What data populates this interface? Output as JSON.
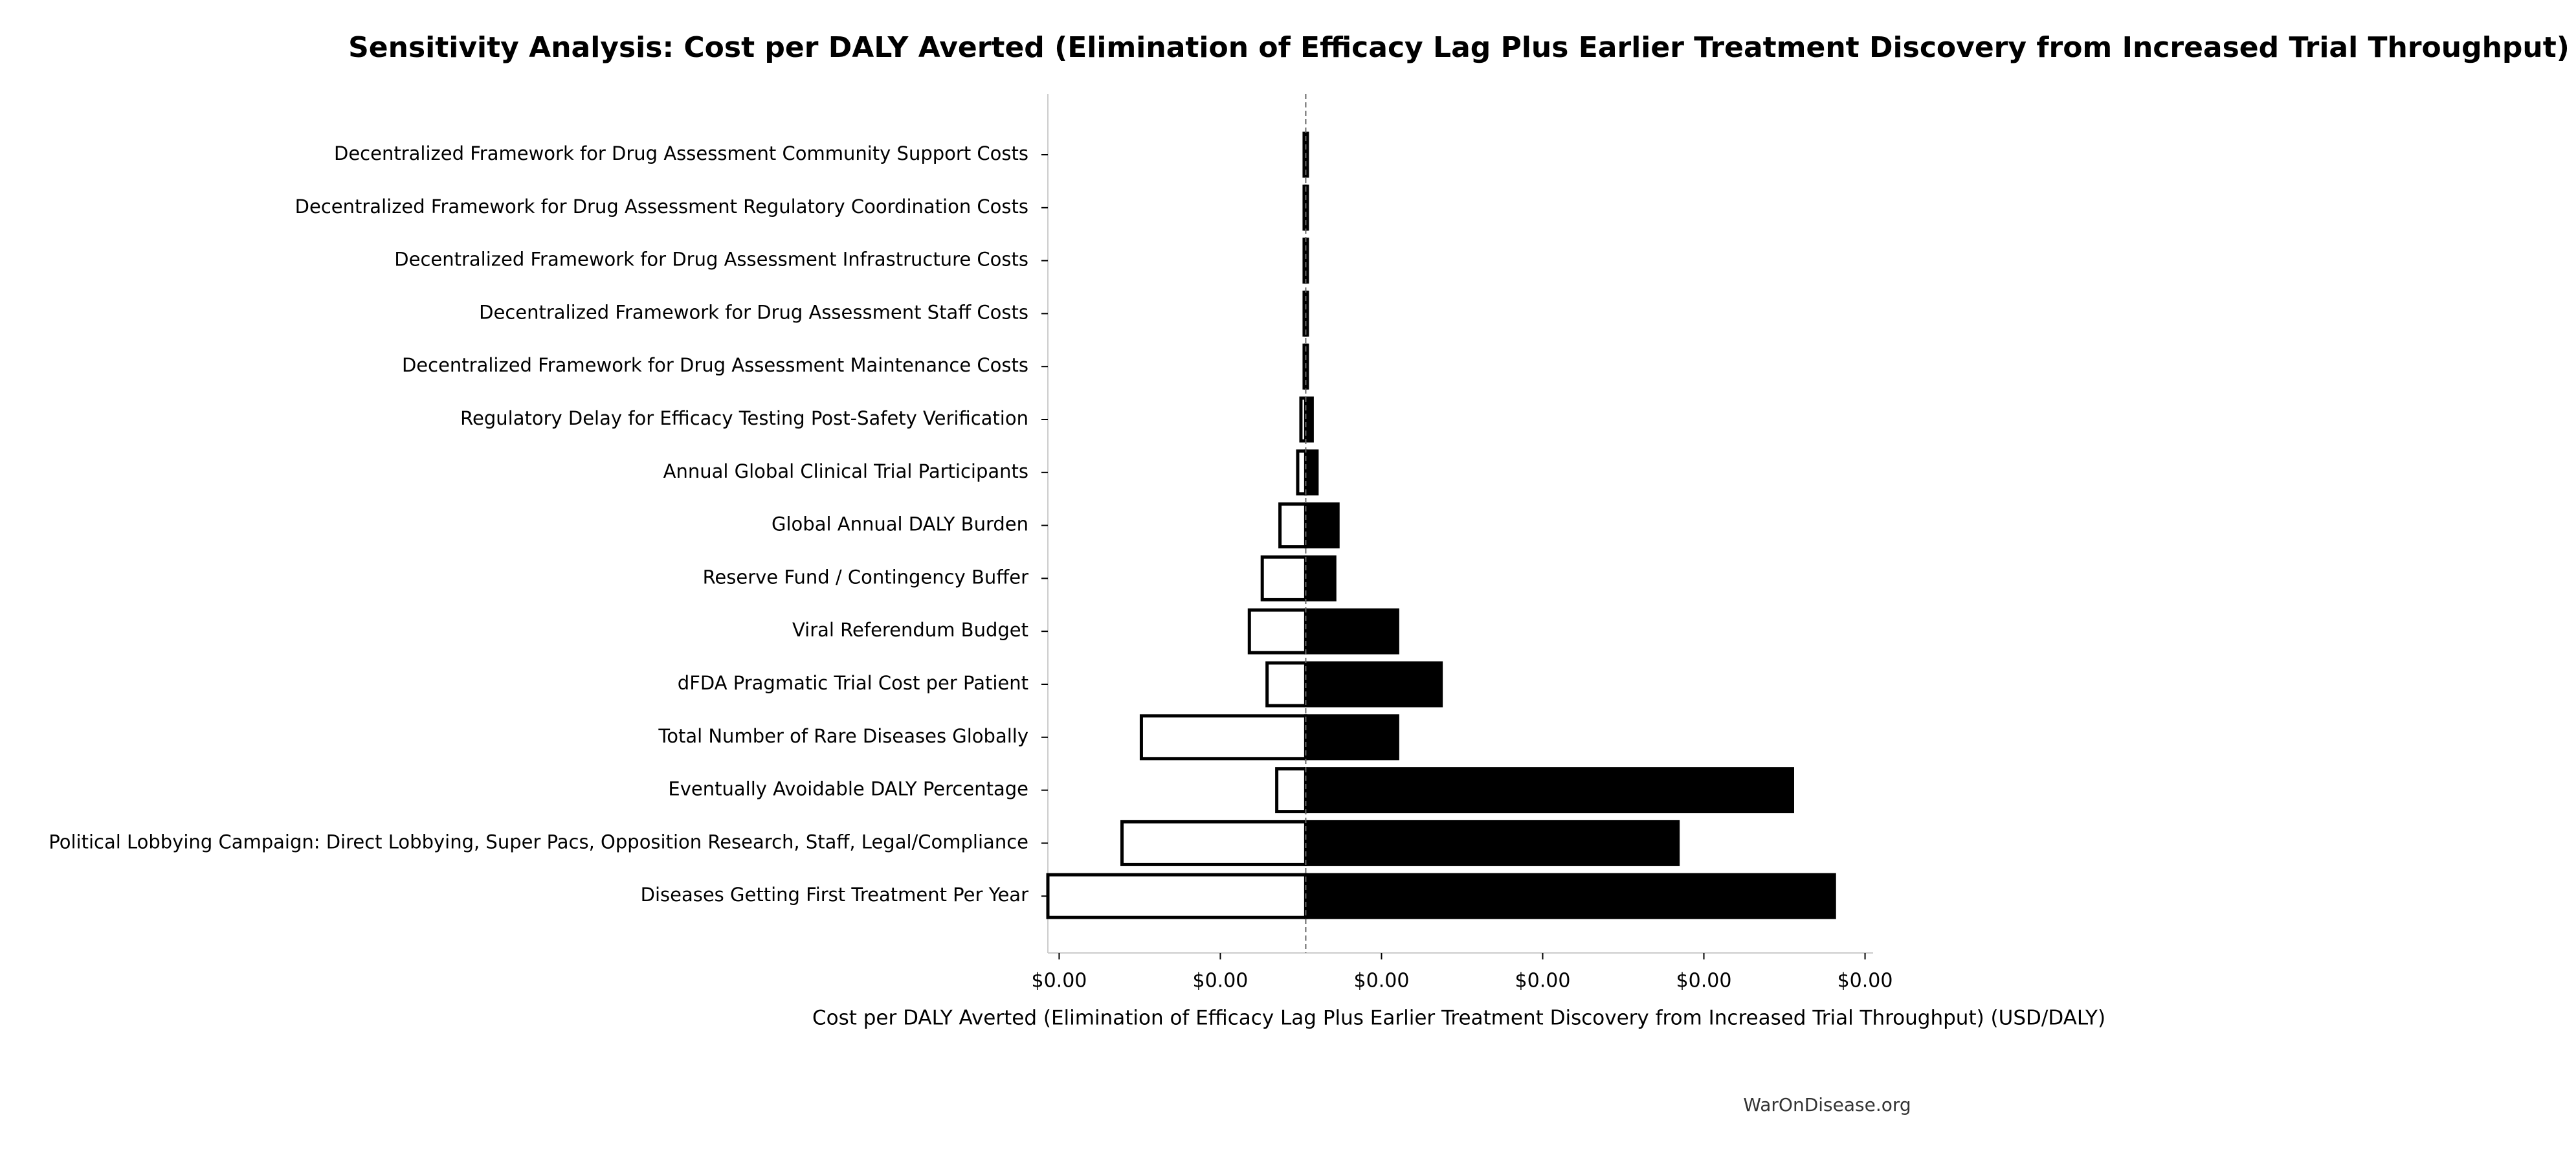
{
  "chart_data": {
    "type": "tornado",
    "title": "Sensitivity Analysis: Cost per DALY Averted (Elimination of Efficacy Lag Plus Earlier Treatment Discovery from Increased Trial Throughput)",
    "x_label": "Cost per DALY Averted (Elimination of Efficacy Lag Plus Earlier Treatment Discovery from Increased Trial Throughput) (USD/DALY)",
    "footer": "WarOnDisease.org",
    "categories": [
      "Decentralized Framework for Drug Assessment Community Support Costs",
      "Decentralized Framework for Drug Assessment Regulatory Coordination Costs",
      "Decentralized Framework for Drug Assessment Infrastructure Costs",
      "Decentralized Framework for Drug Assessment Staff Costs",
      "Decentralized Framework for Drug Assessment Maintenance Costs",
      "Regulatory Delay for Efficacy Testing Post-Safety Verification",
      "Annual Global Clinical Trial Participants",
      "Global Annual DALY Burden",
      "Reserve Fund / Contingency Buffer",
      "Viral Referendum Budget",
      "dFDA Pragmatic Trial Cost per Patient",
      "Total Number of Rare Diseases Globally",
      "Eventually Avoidable DALY Percentage",
      "Political Lobbying Campaign: Direct Lobbying, Super Pacs, Opposition Research, Staff, Legal/Compliance",
      "Diseases Getting First Treatment Per Year"
    ],
    "low_values": [
      0.00152,
      0.00152,
      0.00152,
      0.00152,
      0.00152,
      0.0015,
      0.00148,
      0.00137,
      0.00126,
      0.00118,
      0.00129,
      0.00051,
      0.00135,
      0.00039,
      -7e-05
    ],
    "high_values": [
      0.00154,
      0.00154,
      0.00154,
      0.00154,
      0.00154,
      0.00157,
      0.0016,
      0.00173,
      0.00171,
      0.0021,
      0.00237,
      0.0021,
      0.00455,
      0.00384,
      0.00481
    ],
    "baseline": 0.00153,
    "low_color": "#ffffff",
    "high_color": "#000000",
    "xlim": [
      -7e-05,
      0.00505
    ],
    "xticks": [
      {
        "value": 0,
        "label": "$0.00"
      },
      {
        "value": 0.001,
        "label": "$0.00"
      },
      {
        "value": 0.002,
        "label": "$0.00"
      },
      {
        "value": 0.003,
        "label": "$0.00"
      },
      {
        "value": 0.004,
        "label": "$0.00"
      },
      {
        "value": 0.005,
        "label": "$0.00"
      }
    ]
  }
}
